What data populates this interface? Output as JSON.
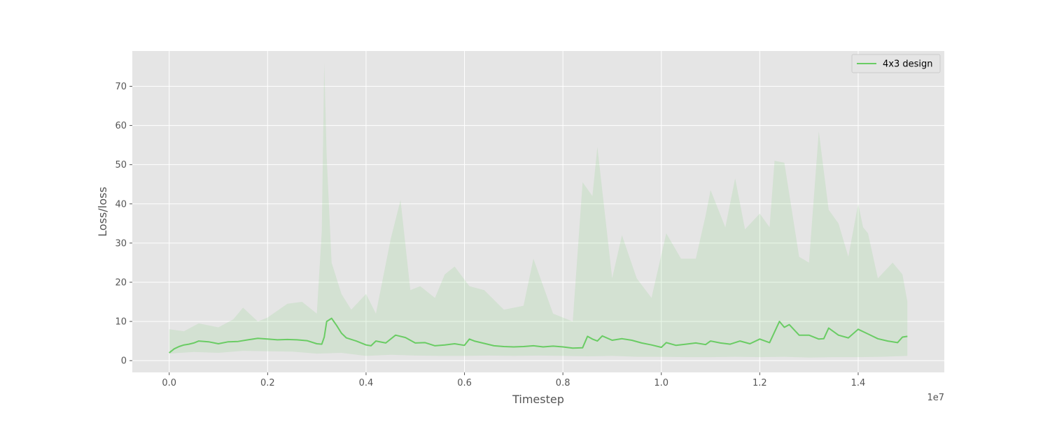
{
  "chart_data": {
    "type": "line",
    "title": "",
    "xlabel": "Timestep",
    "ylabel": "Loss/loss",
    "x_offset_label": "1e7",
    "xlim": [
      -0.075,
      1.575
    ],
    "ylim": [
      -3,
      79
    ],
    "x_ticks": [
      0.0,
      0.2,
      0.4,
      0.6,
      0.8,
      1.0,
      1.2,
      1.4
    ],
    "x_tick_labels": [
      "0.0",
      "0.2",
      "0.4",
      "0.6",
      "0.8",
      "1.0",
      "1.2",
      "1.4"
    ],
    "y_ticks": [
      0,
      10,
      20,
      30,
      40,
      50,
      60,
      70
    ],
    "y_tick_labels": [
      "0",
      "10",
      "20",
      "30",
      "40",
      "50",
      "60",
      "70"
    ],
    "grid": true,
    "legend_position": "top-right",
    "series": [
      {
        "name": "4x3 design",
        "color": "#6acc64",
        "smoothed": [
          [
            0.0,
            2.0
          ],
          [
            0.01,
            3.0
          ],
          [
            0.02,
            3.6
          ],
          [
            0.03,
            4.0
          ],
          [
            0.04,
            4.2
          ],
          [
            0.05,
            4.5
          ],
          [
            0.06,
            5.0
          ],
          [
            0.08,
            4.8
          ],
          [
            0.1,
            4.3
          ],
          [
            0.12,
            4.8
          ],
          [
            0.14,
            4.9
          ],
          [
            0.16,
            5.3
          ],
          [
            0.18,
            5.7
          ],
          [
            0.2,
            5.5
          ],
          [
            0.22,
            5.3
          ],
          [
            0.24,
            5.4
          ],
          [
            0.26,
            5.3
          ],
          [
            0.28,
            5.1
          ],
          [
            0.3,
            4.3
          ],
          [
            0.31,
            4.2
          ],
          [
            0.315,
            6.0
          ],
          [
            0.32,
            10.0
          ],
          [
            0.33,
            10.8
          ],
          [
            0.34,
            9.0
          ],
          [
            0.35,
            7.0
          ],
          [
            0.36,
            5.8
          ],
          [
            0.38,
            5.0
          ],
          [
            0.4,
            4.0
          ],
          [
            0.41,
            3.8
          ],
          [
            0.42,
            5.0
          ],
          [
            0.44,
            4.5
          ],
          [
            0.46,
            6.5
          ],
          [
            0.48,
            5.9
          ],
          [
            0.5,
            4.5
          ],
          [
            0.52,
            4.6
          ],
          [
            0.54,
            3.8
          ],
          [
            0.56,
            4.0
          ],
          [
            0.58,
            4.3
          ],
          [
            0.6,
            3.9
          ],
          [
            0.61,
            5.5
          ],
          [
            0.62,
            5.0
          ],
          [
            0.64,
            4.4
          ],
          [
            0.66,
            3.8
          ],
          [
            0.68,
            3.6
          ],
          [
            0.7,
            3.5
          ],
          [
            0.72,
            3.6
          ],
          [
            0.74,
            3.8
          ],
          [
            0.76,
            3.5
          ],
          [
            0.78,
            3.7
          ],
          [
            0.8,
            3.5
          ],
          [
            0.82,
            3.2
          ],
          [
            0.84,
            3.3
          ],
          [
            0.85,
            6.2
          ],
          [
            0.86,
            5.5
          ],
          [
            0.87,
            5.0
          ],
          [
            0.88,
            6.3
          ],
          [
            0.9,
            5.2
          ],
          [
            0.92,
            5.6
          ],
          [
            0.94,
            5.2
          ],
          [
            0.96,
            4.5
          ],
          [
            0.98,
            4.0
          ],
          [
            1.0,
            3.4
          ],
          [
            1.01,
            4.6
          ],
          [
            1.03,
            3.9
          ],
          [
            1.05,
            4.2
          ],
          [
            1.07,
            4.5
          ],
          [
            1.09,
            4.1
          ],
          [
            1.1,
            5.0
          ],
          [
            1.12,
            4.5
          ],
          [
            1.14,
            4.2
          ],
          [
            1.16,
            5.0
          ],
          [
            1.18,
            4.3
          ],
          [
            1.2,
            5.5
          ],
          [
            1.22,
            4.6
          ],
          [
            1.24,
            10.0
          ],
          [
            1.25,
            8.5
          ],
          [
            1.26,
            9.2
          ],
          [
            1.28,
            6.5
          ],
          [
            1.3,
            6.5
          ],
          [
            1.32,
            5.5
          ],
          [
            1.33,
            5.6
          ],
          [
            1.34,
            8.3
          ],
          [
            1.36,
            6.5
          ],
          [
            1.38,
            5.8
          ],
          [
            1.4,
            8.0
          ],
          [
            1.42,
            6.8
          ],
          [
            1.44,
            5.6
          ],
          [
            1.46,
            5.0
          ],
          [
            1.48,
            4.6
          ],
          [
            1.49,
            6.0
          ],
          [
            1.5,
            6.2
          ]
        ],
        "band_lower": [
          [
            0.0,
            1.8
          ],
          [
            0.05,
            2.2
          ],
          [
            0.1,
            2.0
          ],
          [
            0.15,
            2.5
          ],
          [
            0.2,
            2.4
          ],
          [
            0.25,
            2.3
          ],
          [
            0.3,
            1.8
          ],
          [
            0.35,
            2.0
          ],
          [
            0.4,
            1.2
          ],
          [
            0.45,
            1.5
          ],
          [
            0.5,
            1.3
          ],
          [
            0.55,
            1.2
          ],
          [
            0.6,
            1.2
          ],
          [
            0.65,
            1.3
          ],
          [
            0.7,
            1.2
          ],
          [
            0.75,
            1.3
          ],
          [
            0.8,
            1.2
          ],
          [
            0.85,
            1.1
          ],
          [
            0.9,
            1.2
          ],
          [
            0.95,
            1.0
          ],
          [
            1.0,
            1.0
          ],
          [
            1.05,
            0.9
          ],
          [
            1.1,
            0.9
          ],
          [
            1.15,
            1.0
          ],
          [
            1.2,
            0.9
          ],
          [
            1.25,
            1.0
          ],
          [
            1.3,
            0.8
          ],
          [
            1.35,
            0.9
          ],
          [
            1.4,
            0.9
          ],
          [
            1.45,
            1.0
          ],
          [
            1.5,
            1.2
          ]
        ],
        "band_upper": [
          [
            0.0,
            8.0
          ],
          [
            0.03,
            7.5
          ],
          [
            0.06,
            9.5
          ],
          [
            0.1,
            8.5
          ],
          [
            0.13,
            10.5
          ],
          [
            0.15,
            13.5
          ],
          [
            0.18,
            10.0
          ],
          [
            0.2,
            11.0
          ],
          [
            0.24,
            14.5
          ],
          [
            0.27,
            15.0
          ],
          [
            0.3,
            12.0
          ],
          [
            0.31,
            33.0
          ],
          [
            0.315,
            76.0
          ],
          [
            0.32,
            52.0
          ],
          [
            0.33,
            25.0
          ],
          [
            0.35,
            17.0
          ],
          [
            0.37,
            13.0
          ],
          [
            0.4,
            17.0
          ],
          [
            0.42,
            12.0
          ],
          [
            0.45,
            31.0
          ],
          [
            0.47,
            41.0
          ],
          [
            0.49,
            18.0
          ],
          [
            0.51,
            19.0
          ],
          [
            0.54,
            16.0
          ],
          [
            0.56,
            22.0
          ],
          [
            0.58,
            24.0
          ],
          [
            0.61,
            19.0
          ],
          [
            0.64,
            18.0
          ],
          [
            0.68,
            13.0
          ],
          [
            0.72,
            14.0
          ],
          [
            0.74,
            26.0
          ],
          [
            0.78,
            12.0
          ],
          [
            0.82,
            10.0
          ],
          [
            0.84,
            45.5
          ],
          [
            0.86,
            42.0
          ],
          [
            0.87,
            54.5
          ],
          [
            0.9,
            21.0
          ],
          [
            0.92,
            32.0
          ],
          [
            0.95,
            21.0
          ],
          [
            0.98,
            16.0
          ],
          [
            1.01,
            32.5
          ],
          [
            1.04,
            26.0
          ],
          [
            1.07,
            26.0
          ],
          [
            1.09,
            37.0
          ],
          [
            1.1,
            43.5
          ],
          [
            1.13,
            34.0
          ],
          [
            1.15,
            46.5
          ],
          [
            1.17,
            33.5
          ],
          [
            1.2,
            37.5
          ],
          [
            1.22,
            34.0
          ],
          [
            1.23,
            51.0
          ],
          [
            1.25,
            50.5
          ],
          [
            1.28,
            26.5
          ],
          [
            1.3,
            25.0
          ],
          [
            1.32,
            58.5
          ],
          [
            1.34,
            38.5
          ],
          [
            1.36,
            35.0
          ],
          [
            1.38,
            26.5
          ],
          [
            1.4,
            40.0
          ],
          [
            1.41,
            34.0
          ],
          [
            1.42,
            32.5
          ],
          [
            1.44,
            21.0
          ],
          [
            1.47,
            25.0
          ],
          [
            1.49,
            22.0
          ],
          [
            1.5,
            15.0
          ]
        ]
      }
    ]
  }
}
